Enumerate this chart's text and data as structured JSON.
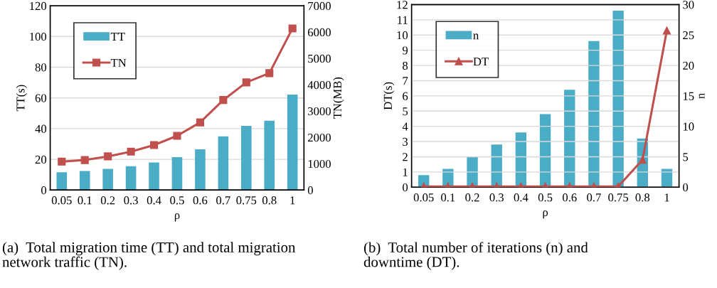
{
  "chart_data": [
    {
      "type": "bar",
      "categories": [
        "0.05",
        "0.1",
        "0.2",
        "0.3",
        "0.4",
        "0.5",
        "0.6",
        "0.7",
        "0.75",
        "0.8",
        "1"
      ],
      "xlabel": "ρ",
      "ylabel": "TT(s)",
      "y2label": "TN(MB)",
      "series": [
        {
          "name": "TT",
          "color": "#4bacc6",
          "values": [
            11.6,
            12.4,
            13.8,
            15.5,
            18,
            21.4,
            26.5,
            35,
            41.8,
            45.2,
            62.2
          ]
        },
        {
          "name": "TN",
          "type": "line",
          "axis": "y2",
          "color": "#c0504d",
          "marker": "square",
          "values": [
            1080,
            1140,
            1280,
            1460,
            1710,
            2060,
            2570,
            3420,
            4090,
            4440,
            6140
          ]
        }
      ],
      "ylim": [
        0,
        120
      ],
      "yticks": [
        0,
        20,
        40,
        60,
        80,
        100,
        120
      ],
      "y2lim": [
        0,
        7000
      ],
      "y2ticks": [
        0,
        1000,
        2000,
        3000,
        4000,
        5000,
        6000,
        7000
      ],
      "grid": "y",
      "legend": "top left",
      "annotations": [
        "(a)  Total migration time (TT) and total migration\nnetwork traffic (TN)."
      ]
    },
    {
      "type": "bar",
      "categories": [
        "0.05",
        "0.1",
        "0.2",
        "0.3",
        "0.4",
        "0.5",
        "0.6",
        "0.7",
        "0.75",
        "0.8",
        "1"
      ],
      "xlabel": "ρ",
      "ylabel": "DT(s)",
      "y2label": "n",
      "series": [
        {
          "name": "n",
          "axis": "y2",
          "color": "#4bacc6",
          "values": [
            2,
            3,
            5,
            7,
            9,
            12,
            16,
            24,
            29,
            8,
            3
          ]
        },
        {
          "name": "DT",
          "type": "line",
          "color": "#c0504d",
          "marker": "triangle",
          "values": [
            0.05,
            0.05,
            0.05,
            0.05,
            0.05,
            0.05,
            0.05,
            0.05,
            0.05,
            1.8,
            10.3
          ]
        }
      ],
      "ylim": [
        0,
        12
      ],
      "yticks": [
        0,
        1,
        2,
        3,
        4,
        5,
        6,
        7,
        8,
        9,
        10,
        11,
        12
      ],
      "y2lim": [
        0,
        30
      ],
      "y2ticks": [
        0,
        5,
        10,
        15,
        20,
        25,
        30
      ],
      "grid": "y",
      "legend": "top left",
      "annotations": [
        "(b)  Total number of iterations (n) and\ndowntime (DT)."
      ]
    }
  ]
}
